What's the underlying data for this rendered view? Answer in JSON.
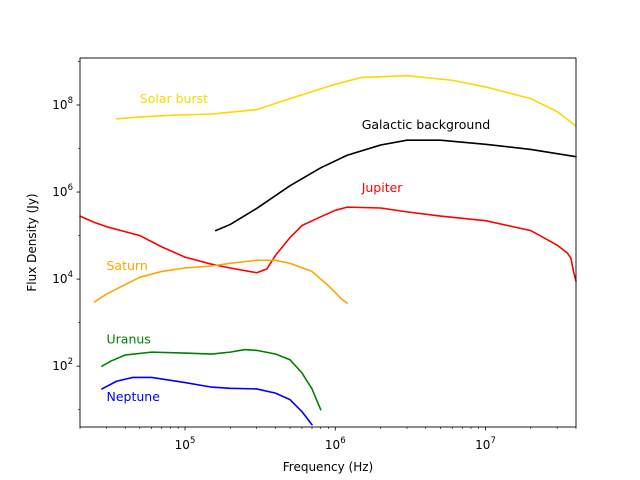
{
  "chart_data": {
    "type": "line",
    "title": "",
    "xlabel": "Frequency (Hz)",
    "ylabel": "Flux Density (Jy)",
    "xscale": "log",
    "yscale": "log",
    "xlim": [
      20000,
      40000000
    ],
    "ylim": [
      4,
      1200000000
    ],
    "grid": false,
    "x_ticks": [
      {
        "value": 100000,
        "base": "10",
        "exp": "5"
      },
      {
        "value": 1000000,
        "base": "10",
        "exp": "6"
      },
      {
        "value": 10000000,
        "base": "10",
        "exp": "7"
      }
    ],
    "y_ticks": [
      {
        "value": 100,
        "base": "10",
        "exp": "2"
      },
      {
        "value": 10000,
        "base": "10",
        "exp": "4"
      },
      {
        "value": 1000000,
        "base": "10",
        "exp": "6"
      },
      {
        "value": 100000000,
        "base": "10",
        "exp": "8"
      }
    ],
    "series": [
      {
        "name": "Solar burst",
        "color": "#ffd700",
        "label_at": [
          50000,
          110000000
        ],
        "x": [
          35000,
          50000,
          80000,
          150000,
          300000,
          500000,
          1000000,
          1500000,
          3000000,
          6000000,
          10000000,
          20000000,
          30000000,
          40000000
        ],
        "y": [
          48000000,
          53000000,
          58000000,
          62000000,
          78000000,
          140000000,
          300000000,
          430000000,
          470000000,
          370000000,
          260000000,
          140000000,
          70000000,
          33000000
        ]
      },
      {
        "name": "Galactic background",
        "color": "#000000",
        "label_at": [
          1500000,
          28000000
        ],
        "x": [
          160000,
          200000,
          300000,
          500000,
          800000,
          1200000,
          2000000,
          3000000,
          5000000,
          10000000,
          20000000,
          40000000
        ],
        "y": [
          130000,
          180000,
          420000,
          1400000,
          3600000,
          7000000,
          12000000,
          15500000,
          15500000,
          12500000,
          9500000,
          6500000
        ]
      },
      {
        "name": "Jupiter",
        "color": "#ff0000",
        "label_at": [
          1500000,
          1000000
        ],
        "x": [
          20000,
          25000,
          30000,
          50000,
          70000,
          100000,
          150000,
          200000,
          300000,
          350000,
          400000,
          500000,
          600000,
          800000,
          1000000,
          1200000,
          2000000,
          3000000,
          5000000,
          10000000,
          20000000,
          30000000,
          35000000,
          37000000,
          38500000,
          40000000
        ],
        "y": [
          280000,
          200000,
          160000,
          100000,
          55000,
          32000,
          22000,
          18000,
          14000,
          17000,
          35000,
          90000,
          170000,
          270000,
          380000,
          450000,
          430000,
          350000,
          280000,
          220000,
          130000,
          60000,
          40000,
          30000,
          15000,
          9000
        ]
      },
      {
        "name": "Saturn",
        "color": "#ffa500",
        "label_at": [
          30000,
          16000
        ],
        "x": [
          25000,
          30000,
          40000,
          50000,
          70000,
          100000,
          150000,
          200000,
          300000,
          400000,
          500000,
          700000,
          900000,
          1100000,
          1200000
        ],
        "y": [
          3000,
          4500,
          7500,
          11000,
          15000,
          18000,
          20000,
          23000,
          27000,
          27000,
          23000,
          15000,
          7000,
          3500,
          2800
        ]
      },
      {
        "name": "Uranus",
        "color": "#008000",
        "label_at": [
          30000,
          330
        ],
        "x": [
          28000,
          32000,
          40000,
          60000,
          100000,
          150000,
          200000,
          250000,
          300000,
          400000,
          500000,
          600000,
          700000,
          800000
        ],
        "y": [
          100,
          130,
          180,
          210,
          200,
          190,
          210,
          240,
          230,
          190,
          140,
          70,
          30,
          10
        ]
      },
      {
        "name": "Neptune",
        "color": "#0000ff",
        "label_at": [
          30000,
          16
        ],
        "x": [
          28000,
          35000,
          45000,
          60000,
          100000,
          150000,
          200000,
          300000,
          400000,
          500000,
          600000,
          700000
        ],
        "y": [
          30,
          45,
          55,
          55,
          42,
          33,
          31,
          30,
          24,
          17,
          9,
          4.5
        ]
      }
    ]
  }
}
